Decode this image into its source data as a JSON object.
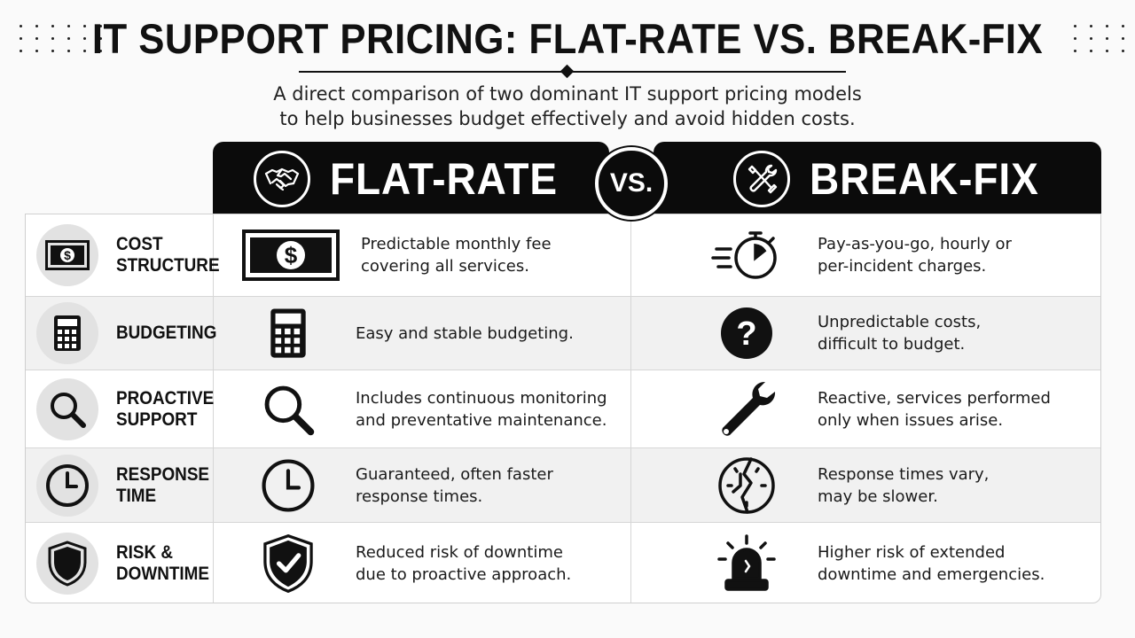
{
  "header": {
    "title": "IT SUPPORT PRICING: FLAT-RATE VS. BREAK-FIX",
    "subtitle_line1": "A direct comparison of two dominant IT support pricing models",
    "subtitle_line2": "to help businesses budget effectively and avoid hidden costs."
  },
  "columns": {
    "flat": {
      "label": "FLAT-RATE",
      "icon": "handshake-icon"
    },
    "vs": "VS.",
    "break": {
      "label": "BREAK-FIX",
      "icon": "tools-icon"
    }
  },
  "rows": [
    {
      "label": "COST\nSTRUCTURE",
      "label_icon": "dollar-bill-icon",
      "flat_icon": "dollar-bill-icon",
      "flat_text": "Predictable monthly fee\ncovering all services.",
      "break_icon": "stopwatch-icon",
      "break_text": "Pay-as-you-go, hourly or\nper-incident charges."
    },
    {
      "label": "BUDGETING",
      "label_icon": "calculator-icon",
      "flat_icon": "calculator-icon",
      "flat_text": "Easy and stable budgeting.",
      "break_icon": "question-icon",
      "break_text": "Unpredictable costs,\ndifficult to budget."
    },
    {
      "label": "PROACTIVE\nSUPPORT",
      "label_icon": "magnifier-icon",
      "flat_icon": "magnifier-icon",
      "flat_text": "Includes continuous monitoring\nand preventative maintenance.",
      "break_icon": "wrench-icon",
      "break_text": "Reactive, services performed\nonly when issues arise."
    },
    {
      "label": "RESPONSE\nTIME",
      "label_icon": "clock-icon",
      "flat_icon": "clock-icon",
      "flat_text": "Guaranteed, often faster\nresponse times.",
      "break_icon": "broken-clock-icon",
      "break_text": "Response times vary,\nmay be slower."
    },
    {
      "label": "RISK &\nDOWNTIME",
      "label_icon": "shield-icon",
      "flat_icon": "shield-check-icon",
      "flat_text": "Reduced risk of downtime\ndue to proactive approach.",
      "break_icon": "alarm-light-icon",
      "break_text": "Higher risk of extended\ndowntime and emergencies."
    }
  ]
}
